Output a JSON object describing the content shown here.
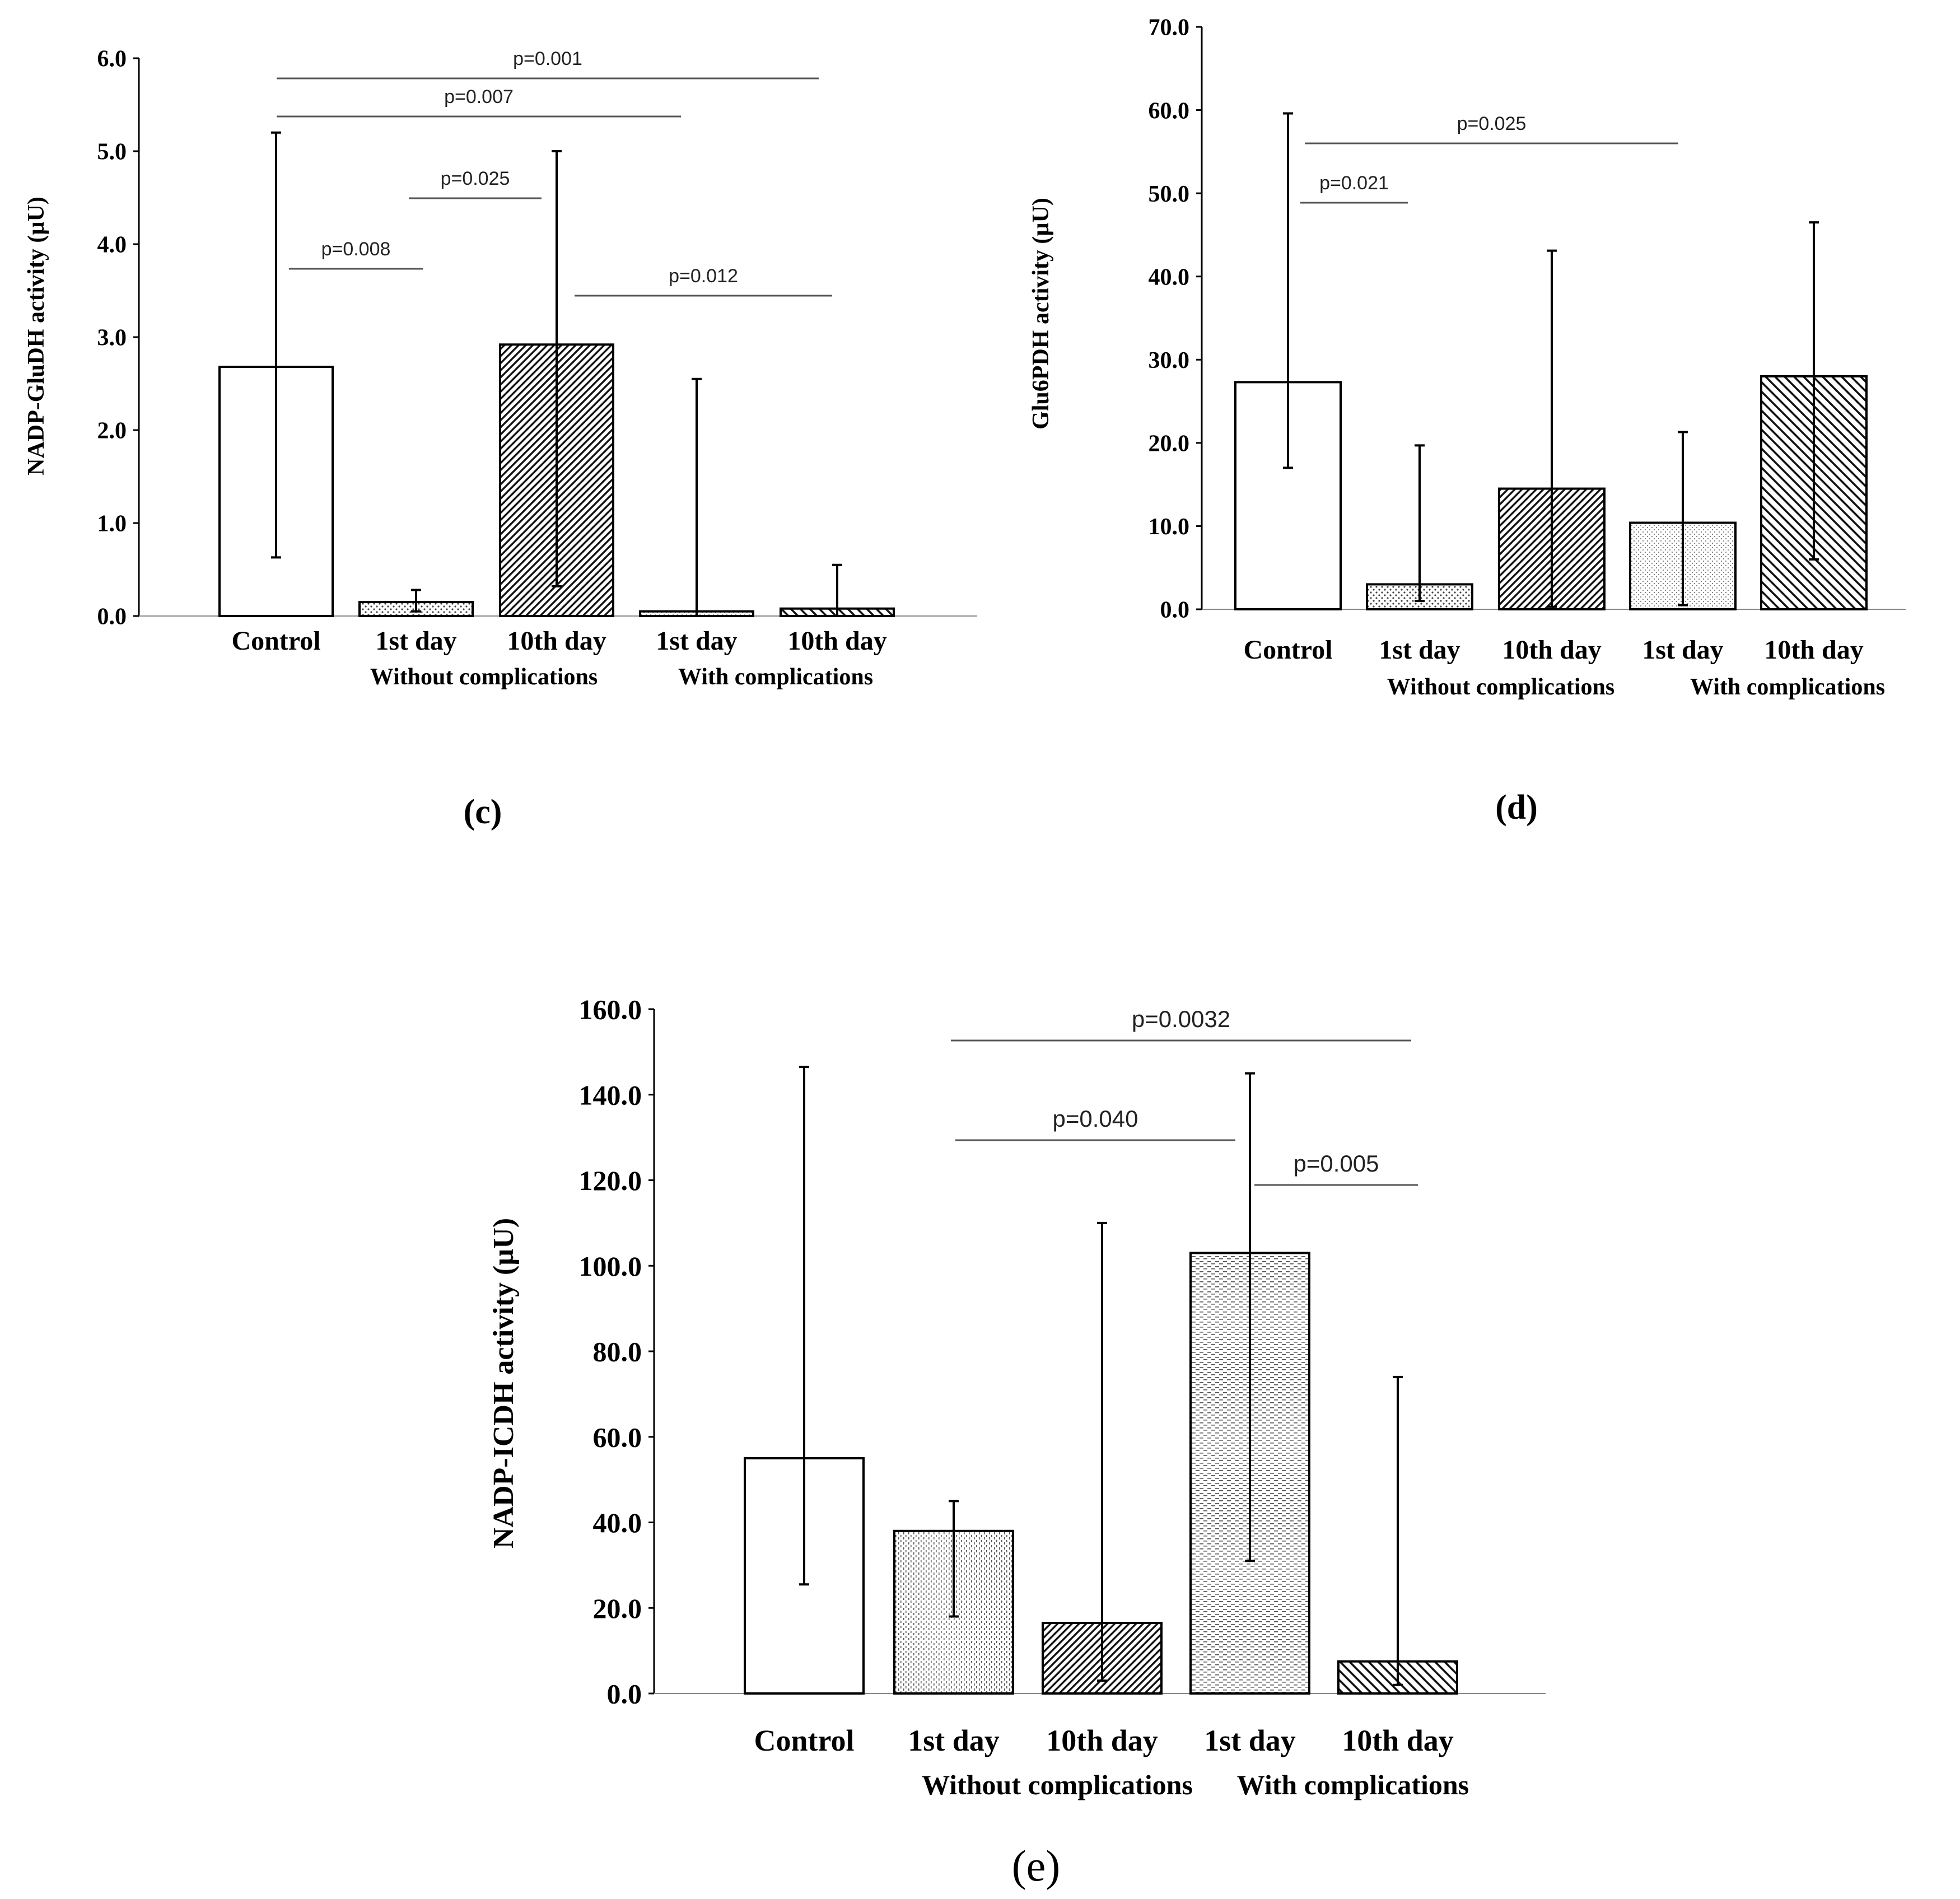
{
  "chart_data": [
    {
      "type": "bar",
      "panel": "(c)",
      "ylabel": "NADP-GluDH activity (µU)",
      "ylim": [
        0,
        6
      ],
      "yticks": [
        "0.0",
        "1.0",
        "2.0",
        "3.0",
        "4.0",
        "5.0",
        "6.0"
      ],
      "categories": [
        "Control",
        "1st day",
        "10th day",
        "1st day",
        "10th day"
      ],
      "groups": [
        "Without complications",
        "With complications"
      ],
      "values": [
        2.68,
        0.15,
        2.92,
        0.05,
        0.08
      ],
      "error_low": [
        0.63,
        0.05,
        0.32,
        0.0,
        0.0
      ],
      "error_high": [
        5.2,
        0.28,
        5.0,
        2.55,
        0.55
      ],
      "patterns": [
        "none",
        "dots",
        "diag-dense",
        "dots-fine",
        "diag"
      ],
      "comparisons": [
        {
          "label": "p=0.001",
          "from": 0,
          "to": 4
        },
        {
          "label": "p=0.007",
          "from": 0,
          "to": 3
        },
        {
          "label": "p=0.025",
          "from": 1,
          "to": 2
        },
        {
          "label": "p=0.008",
          "from": 0,
          "to": 1
        },
        {
          "label": "p=0.012",
          "from": 2,
          "to": 4
        }
      ]
    },
    {
      "type": "bar",
      "panel": "(d)",
      "ylabel": "Glu6PDH activity (µU)",
      "ylim": [
        0,
        70
      ],
      "yticks": [
        "0.0",
        "10.0",
        "20.0",
        "30.0",
        "40.0",
        "50.0",
        "60.0",
        "70.0"
      ],
      "categories": [
        "Control",
        "1st day",
        "10th day",
        "1st day",
        "10th day"
      ],
      "groups": [
        "Without complications",
        "With complications"
      ],
      "values": [
        27.3,
        3.0,
        14.5,
        10.4,
        28.0
      ],
      "error_low": [
        17.0,
        1.0,
        0.3,
        0.5,
        6.0
      ],
      "error_high": [
        59.6,
        19.7,
        43.1,
        21.3,
        46.5
      ],
      "patterns": [
        "none",
        "dots",
        "diag-dense",
        "dots-fine",
        "diag"
      ],
      "comparisons": [
        {
          "label": "p=0.025",
          "from": 0,
          "to": 3
        },
        {
          "label": "p=0.021",
          "from": 0,
          "to": 1
        }
      ]
    },
    {
      "type": "bar",
      "panel": "(e)",
      "ylabel": "NADP-ICDH activity (µU)",
      "ylim": [
        0,
        160
      ],
      "yticks": [
        "0.0",
        "20.0",
        "40.0",
        "60.0",
        "80.0",
        "100.0",
        "120.0",
        "140.0",
        "160.0"
      ],
      "categories": [
        "Control",
        "1st day",
        "10th day",
        "1st day",
        "10th day"
      ],
      "groups": [
        "Without complications",
        "With complications"
      ],
      "values": [
        55.0,
        38.0,
        16.5,
        103.0,
        7.5
      ],
      "error_low": [
        25.5,
        18.0,
        3.0,
        31.0,
        2.0
      ],
      "error_high": [
        146.5,
        45.0,
        110.0,
        145.0,
        74.0
      ],
      "patterns": [
        "none",
        "dots-v",
        "diag-dense",
        "dash-h",
        "diag"
      ],
      "comparisons": [
        {
          "label": "p=0.0032",
          "from": 1,
          "to": 4
        },
        {
          "label": "p=0.040",
          "from": 1,
          "to": 3
        },
        {
          "label": "p=0.005",
          "from": 3,
          "to": 4
        }
      ]
    }
  ]
}
